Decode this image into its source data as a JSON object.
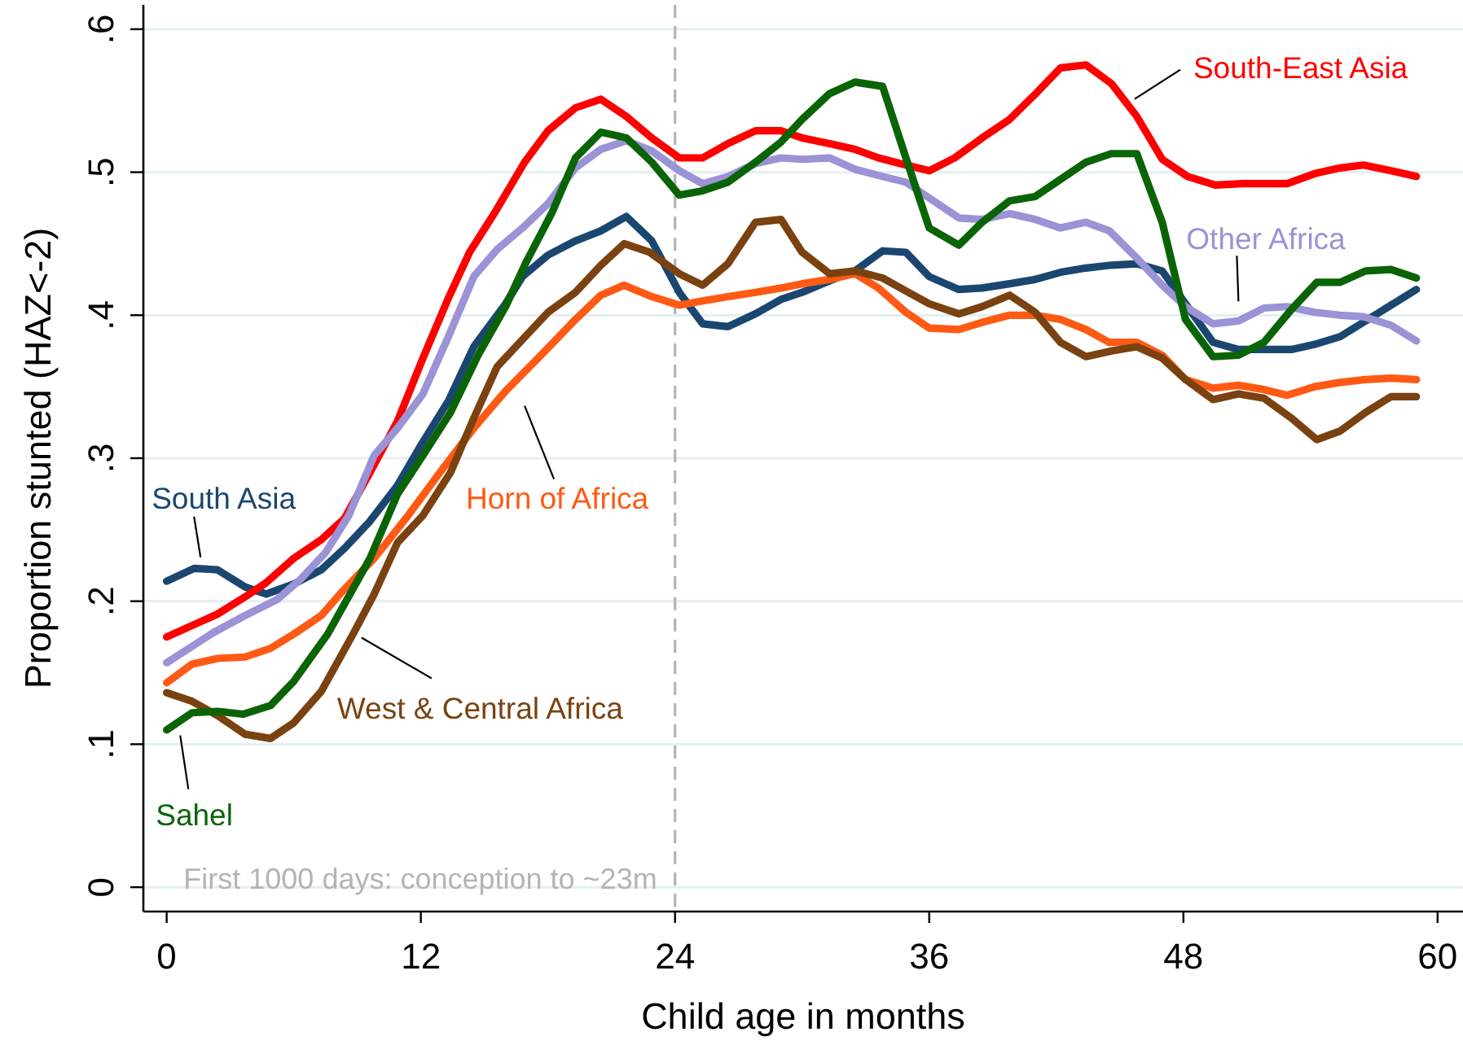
{
  "chart_data": {
    "type": "line",
    "xlabel": "Child age in months",
    "ylabel": "Proportion stunted (HAZ<-2)",
    "xlim": [
      -1.1,
      61.2
    ],
    "ylim": [
      -0.017,
      0.617
    ],
    "xticks": [
      0,
      12,
      24,
      36,
      48,
      60
    ],
    "yticks": [
      0,
      {
        "value": 0.1,
        "label": ".1"
      },
      {
        "value": 0.2,
        "label": ".2"
      },
      {
        "value": 0.3,
        "label": ".3"
      },
      {
        "value": 0.4,
        "label": ".4"
      },
      {
        "value": 0.5,
        "label": ".5"
      },
      {
        "value": 0.6,
        "label": ".6"
      }
    ],
    "grid": "y",
    "ref_lines": [
      {
        "axis": "x",
        "value": 24,
        "label": "First 1000 days: conception to ~23m",
        "color": "#b4b4b4",
        "line_style": "dashed"
      }
    ],
    "series": [
      {
        "name": "South Asia",
        "color": "#1a476f",
        "x": [
          0,
          1.3,
          2.4,
          3.7,
          4.7,
          6,
          7.3,
          8.4,
          9.6,
          10.9,
          12,
          13.3,
          14.5,
          16,
          16.8,
          18,
          19.3,
          20.5,
          21.7,
          22.9,
          24.2,
          25.3,
          26.5,
          27.8,
          29,
          30,
          31.3,
          32.5,
          33.8,
          34.9,
          36,
          37.4,
          38.5,
          39.8,
          41,
          42.2,
          43.4,
          44.6,
          45.8,
          47,
          48.1,
          49.4,
          50.6,
          53.1,
          54.3,
          55.4,
          56.6,
          57.8,
          59
        ],
        "values": [
          0.214,
          0.223,
          0.222,
          0.21,
          0.205,
          0.212,
          0.222,
          0.237,
          0.256,
          0.281,
          0.309,
          0.34,
          0.378,
          0.408,
          0.427,
          0.442,
          0.452,
          0.459,
          0.469,
          0.452,
          0.416,
          0.394,
          0.392,
          0.401,
          0.411,
          0.416,
          0.424,
          0.431,
          0.445,
          0.444,
          0.427,
          0.418,
          0.419,
          0.422,
          0.425,
          0.43,
          0.433,
          0.435,
          0.436,
          0.431,
          0.408,
          0.381,
          0.376,
          0.376,
          0.38,
          0.385,
          0.396,
          0.407,
          0.418
        ]
      },
      {
        "name": "South-East Asia",
        "color": "#ff0000",
        "x": [
          0,
          2.4,
          3.7,
          4.7,
          6,
          7.3,
          8.4,
          9.6,
          10.9,
          12.1,
          13.3,
          14.3,
          15.5,
          16.9,
          18,
          19.3,
          20.5,
          21.7,
          22.9,
          24.2,
          25.3,
          26.5,
          27.8,
          29,
          30,
          31.3,
          32.5,
          33.6,
          34.9,
          36,
          37.2,
          38.5,
          39.8,
          41.1,
          42.2,
          43.4,
          44.6,
          45.8,
          47,
          48.2,
          49.5,
          50.8,
          52.9,
          54.2,
          55.4,
          56.5,
          57.8,
          59
        ],
        "values": [
          0.175,
          0.191,
          0.203,
          0.213,
          0.23,
          0.243,
          0.258,
          0.29,
          0.326,
          0.37,
          0.412,
          0.444,
          0.472,
          0.507,
          0.529,
          0.545,
          0.551,
          0.539,
          0.524,
          0.51,
          0.51,
          0.52,
          0.529,
          0.529,
          0.524,
          0.52,
          0.516,
          0.51,
          0.505,
          0.501,
          0.51,
          0.524,
          0.537,
          0.556,
          0.573,
          0.575,
          0.562,
          0.539,
          0.509,
          0.497,
          0.491,
          0.492,
          0.492,
          0.499,
          0.503,
          0.505,
          0.501,
          0.497
        ]
      },
      {
        "name": "Other Africa",
        "color": "#9a93d6",
        "x": [
          0,
          2.2,
          3.7,
          5.2,
          6.3,
          7.5,
          8.6,
          9.8,
          10.9,
          12.1,
          13.3,
          14.5,
          15.6,
          16.8,
          18,
          19.3,
          20.5,
          21.7,
          22.9,
          24.2,
          25.3,
          26.5,
          27.8,
          29,
          30,
          31.3,
          32.5,
          33.8,
          34.9,
          36,
          37.4,
          38.5,
          39.8,
          41,
          42.2,
          43.4,
          44.5,
          45.8,
          47,
          48.1,
          49.4,
          50.6,
          51.8,
          52.9,
          54.2,
          55.4,
          56.5,
          57.8,
          59
        ],
        "values": [
          0.157,
          0.178,
          0.19,
          0.201,
          0.215,
          0.234,
          0.26,
          0.302,
          0.321,
          0.345,
          0.385,
          0.427,
          0.446,
          0.461,
          0.478,
          0.503,
          0.516,
          0.522,
          0.515,
          0.501,
          0.492,
          0.497,
          0.506,
          0.51,
          0.509,
          0.51,
          0.502,
          0.497,
          0.493,
          0.482,
          0.468,
          0.467,
          0.471,
          0.467,
          0.461,
          0.465,
          0.459,
          0.44,
          0.421,
          0.406,
          0.394,
          0.396,
          0.405,
          0.406,
          0.402,
          0.4,
          0.399,
          0.393,
          0.382
        ]
      },
      {
        "name": "Horn of Africa",
        "color": "#ff5a14",
        "x": [
          0,
          1.2,
          2.4,
          3.7,
          4.9,
          6,
          7.3,
          8.3,
          9.8,
          11.4,
          12.9,
          14.5,
          16,
          17.8,
          19.3,
          20.5,
          21.6,
          22.9,
          24.2,
          25.3,
          26.5,
          27.8,
          29,
          30,
          31.3,
          32.5,
          33.6,
          34.9,
          36,
          37.4,
          38.5,
          39.8,
          41,
          42.2,
          43.4,
          44.5,
          45.8,
          47,
          48.1,
          49.4,
          50.6,
          51.8,
          52.9,
          54.2,
          55.4,
          56.6,
          57.8,
          59
        ],
        "values": [
          0.143,
          0.156,
          0.16,
          0.161,
          0.167,
          0.177,
          0.19,
          0.207,
          0.23,
          0.26,
          0.29,
          0.321,
          0.347,
          0.374,
          0.397,
          0.414,
          0.421,
          0.413,
          0.407,
          0.41,
          0.413,
          0.416,
          0.419,
          0.422,
          0.425,
          0.429,
          0.419,
          0.402,
          0.391,
          0.39,
          0.395,
          0.4,
          0.4,
          0.397,
          0.39,
          0.381,
          0.381,
          0.372,
          0.355,
          0.349,
          0.351,
          0.348,
          0.344,
          0.35,
          0.353,
          0.355,
          0.356,
          0.355
        ]
      },
      {
        "name": "West & Central Africa",
        "color": "#7a4210",
        "x": [
          0,
          1.2,
          2.4,
          3.7,
          4.9,
          6,
          7.3,
          8.8,
          9.8,
          10.9,
          12.1,
          13.4,
          14.5,
          15.6,
          16.8,
          18,
          19.3,
          20.5,
          21.6,
          22.8,
          24.2,
          25.3,
          26.5,
          27.8,
          29,
          30,
          31.3,
          32.5,
          33.8,
          34.9,
          36,
          37.4,
          38.5,
          39.8,
          41,
          42.2,
          43.4,
          44.6,
          45.8,
          47,
          48.1,
          49.4,
          50.6,
          51.8,
          53.1,
          54.3,
          55.4,
          56.6,
          57.8,
          59
        ],
        "values": [
          0.136,
          0.13,
          0.12,
          0.107,
          0.104,
          0.115,
          0.137,
          0.177,
          0.205,
          0.241,
          0.26,
          0.29,
          0.328,
          0.364,
          0.383,
          0.402,
          0.416,
          0.435,
          0.45,
          0.444,
          0.429,
          0.421,
          0.436,
          0.465,
          0.467,
          0.444,
          0.429,
          0.431,
          0.426,
          0.417,
          0.408,
          0.401,
          0.406,
          0.414,
          0.402,
          0.381,
          0.371,
          0.375,
          0.378,
          0.37,
          0.355,
          0.341,
          0.345,
          0.342,
          0.328,
          0.313,
          0.319,
          0.332,
          0.343,
          0.343
        ]
      },
      {
        "name": "Sahel",
        "color": "#0a6406",
        "x": [
          0,
          1.2,
          2.4,
          3.6,
          4.9,
          6,
          7.6,
          9.6,
          10.9,
          12.1,
          13.4,
          14.7,
          16,
          17,
          18.2,
          19.3,
          20.5,
          21.7,
          22.9,
          24.2,
          25.3,
          26.5,
          27.8,
          29,
          30,
          31.3,
          32.5,
          33.8,
          34.9,
          36,
          37.4,
          38.5,
          39.8,
          41,
          42.2,
          43.4,
          44.6,
          45.8,
          47,
          48.1,
          49.4,
          50.6,
          51.8,
          53.1,
          54.3,
          55.4,
          56.6,
          57.8,
          59
        ],
        "values": [
          0.11,
          0.122,
          0.123,
          0.121,
          0.127,
          0.144,
          0.177,
          0.23,
          0.275,
          0.302,
          0.332,
          0.372,
          0.406,
          0.438,
          0.472,
          0.51,
          0.528,
          0.524,
          0.507,
          0.484,
          0.487,
          0.493,
          0.507,
          0.521,
          0.537,
          0.555,
          0.563,
          0.56,
          0.51,
          0.461,
          0.449,
          0.465,
          0.48,
          0.483,
          0.495,
          0.507,
          0.513,
          0.513,
          0.465,
          0.397,
          0.371,
          0.372,
          0.381,
          0.404,
          0.423,
          0.423,
          0.431,
          0.432,
          0.426
        ]
      }
    ]
  }
}
